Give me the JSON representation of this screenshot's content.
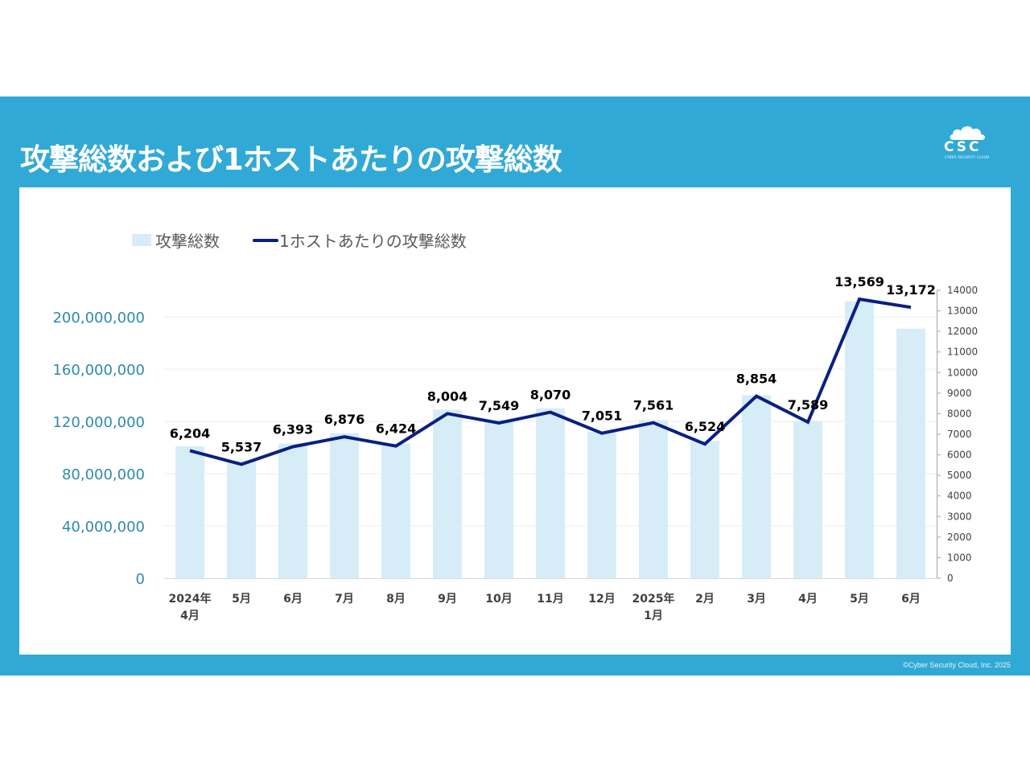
{
  "slide": {
    "title": "攻撃総数および1ホストあたりの攻撃総数",
    "logo_text": "CSC",
    "logo_subtext": "CYBER SECURITY CLOUD",
    "copyright": "©Cyber Security Cloud, Inc. 2025",
    "colors": {
      "band": "#31a9d6",
      "bar": "#d6edf8",
      "line": "#0a1f82",
      "left_axis_text": "#2e8aab",
      "category_text": "#404040"
    }
  },
  "chart_data": {
    "type": "bar+line",
    "title": "",
    "legend_position": "top-left",
    "categories": [
      [
        "2024年",
        "4月"
      ],
      [
        "5月"
      ],
      [
        "6月"
      ],
      [
        "7月"
      ],
      [
        "8月"
      ],
      [
        "9月"
      ],
      [
        "10月"
      ],
      [
        "11月"
      ],
      [
        "12月"
      ],
      [
        "2025年",
        "1月"
      ],
      [
        "2月"
      ],
      [
        "3月"
      ],
      [
        "4月"
      ],
      [
        "5月"
      ],
      [
        "6月"
      ]
    ],
    "series": [
      {
        "name": "攻撃総数",
        "type": "bar",
        "axis": "left",
        "values": [
          101000000,
          90000000,
          103000000,
          111000000,
          103000000,
          129000000,
          121000000,
          130000000,
          112000000,
          121000000,
          105000000,
          140000000,
          120000000,
          212000000,
          191000000
        ]
      },
      {
        "name": "1ホストあたりの攻撃総数",
        "type": "line",
        "axis": "right",
        "values": [
          6204,
          5537,
          6393,
          6876,
          6424,
          8004,
          7549,
          8070,
          7051,
          7561,
          6524,
          8854,
          7589,
          13569,
          13172
        ],
        "labels": [
          "6,204",
          "5,537",
          "6,393",
          "6,876",
          "6,424",
          "8,004",
          "7,549",
          "8,070",
          "7,051",
          "7,561",
          "6,524",
          "8,854",
          "7,589",
          "13,569",
          "13,172"
        ]
      }
    ],
    "left_axis": {
      "range": [
        0,
        200000000
      ],
      "ticks": [
        0,
        40000000,
        80000000,
        120000000,
        160000000,
        200000000
      ],
      "tick_labels": [
        "0",
        "40,000,000",
        "80,000,000",
        "120,000,000",
        "160,000,000",
        "200,000,000"
      ],
      "grid": true
    },
    "right_axis": {
      "range": [
        0,
        14000
      ],
      "ticks": [
        0,
        1000,
        2000,
        3000,
        4000,
        5000,
        6000,
        7000,
        8000,
        9000,
        10000,
        11000,
        12000,
        13000,
        14000
      ],
      "tick_labels": [
        "0",
        "1000",
        "2000",
        "3000",
        "4000",
        "5000",
        "6000",
        "7000",
        "8000",
        "9000",
        "10000",
        "11000",
        "12000",
        "13000",
        "14000"
      ]
    },
    "xlabel": "",
    "ylabel": ""
  }
}
